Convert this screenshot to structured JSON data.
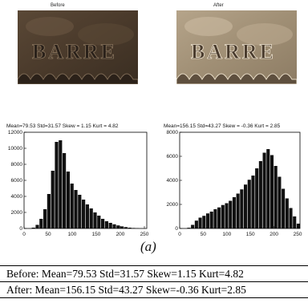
{
  "panels": {
    "before_title": "Before",
    "after_title": "After"
  },
  "coin": {
    "lettering": "BARRE"
  },
  "chart_data": [
    {
      "type": "bar",
      "title": "Mean=79.53 Std=31.57 Skew = 1.15  Kurt = 4.82",
      "xlabel": "",
      "ylabel": "",
      "xlim": [
        0,
        255
      ],
      "ylim": [
        0,
        12000
      ],
      "xticks": [
        0,
        50,
        100,
        150,
        200,
        250
      ],
      "yticks": [
        0,
        2000,
        4000,
        6000,
        8000,
        10000,
        12000
      ],
      "bin_width": 8,
      "x": [
        20,
        28,
        36,
        44,
        52,
        60,
        68,
        76,
        84,
        92,
        100,
        108,
        116,
        124,
        132,
        140,
        148,
        156,
        164,
        172,
        180,
        188,
        196,
        204,
        212,
        220,
        228,
        236
      ],
      "values": [
        100,
        450,
        1200,
        2400,
        4300,
        7200,
        10800,
        11000,
        9400,
        7100,
        5600,
        4800,
        4200,
        3600,
        3000,
        2500,
        2000,
        1600,
        1200,
        900,
        700,
        520,
        380,
        260,
        170,
        100,
        60,
        30
      ]
    },
    {
      "type": "bar",
      "title": "Mean=156.15 Std=43.27 Skew = -0.36  Kurt = 2.85",
      "xlabel": "",
      "ylabel": "",
      "xlim": [
        0,
        255
      ],
      "ylim": [
        0,
        8000
      ],
      "xticks": [
        0,
        50,
        100,
        150,
        200,
        250
      ],
      "yticks": [
        0,
        2000,
        4000,
        6000,
        8000
      ],
      "bin_width": 8,
      "x": [
        20,
        28,
        36,
        44,
        52,
        60,
        68,
        76,
        84,
        92,
        100,
        108,
        116,
        124,
        132,
        140,
        148,
        156,
        164,
        172,
        180,
        188,
        196,
        204,
        212,
        220,
        228,
        236,
        244,
        252
      ],
      "values": [
        60,
        300,
        650,
        900,
        1050,
        1250,
        1400,
        1600,
        1750,
        1950,
        2100,
        2300,
        2600,
        2900,
        3250,
        3650,
        4050,
        4400,
        5000,
        5600,
        6300,
        6600,
        6100,
        5200,
        4300,
        3300,
        2500,
        1700,
        1000,
        400
      ]
    }
  ],
  "figure": {
    "caption": "(a)"
  },
  "table": {
    "rows": [
      "Before: Mean=79.53 Std=31.57 Skew=1.15 Kurt=4.82",
      "After: Mean=156.15 Std=43.27 Skew=-0.36 Kurt=2.85"
    ]
  }
}
